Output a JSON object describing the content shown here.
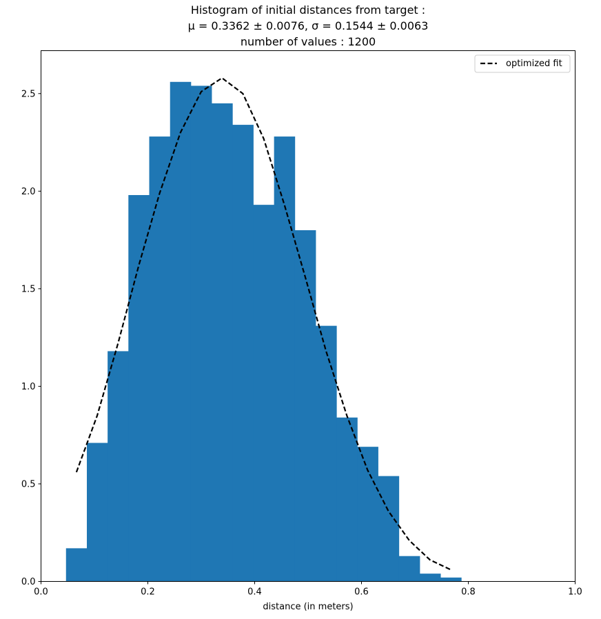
{
  "chart_data": {
    "type": "bar",
    "title_lines": [
      "Histogram of initial distances from target :",
      "μ = 0.3362 ± 0.0076, σ = 0.1544 ± 0.0063",
      "number of values :   1200"
    ],
    "xlabel": "distance (in meters)",
    "ylabel": "",
    "xlim": [
      0.0,
      1.0
    ],
    "ylim": [
      0.0,
      2.72
    ],
    "xticks": [
      "0.0",
      "0.2",
      "0.4",
      "0.6",
      "0.8",
      "1.0"
    ],
    "yticks": [
      "0.0",
      "0.5",
      "1.0",
      "1.5",
      "2.0",
      "2.5"
    ],
    "grid": false,
    "legend_position": "top-right",
    "bar_color": "#1f77b4",
    "fit_color": "#000000",
    "bins": {
      "edges": [
        0.0468,
        0.0858,
        0.1247,
        0.1636,
        0.2026,
        0.2416,
        0.2805,
        0.3194,
        0.3584,
        0.3974,
        0.4363,
        0.4752,
        0.5142,
        0.5532,
        0.5921,
        0.631,
        0.67,
        0.709,
        0.7479,
        0.7868
      ],
      "values": [
        0.17,
        0.71,
        1.18,
        1.98,
        2.28,
        2.56,
        2.54,
        2.45,
        2.34,
        1.93,
        2.28,
        1.8,
        1.31,
        0.84,
        0.69,
        0.54,
        0.13,
        0.04,
        0.02
      ]
    },
    "series": [
      {
        "name": "optimized fit",
        "x": [
          0.0663,
          0.1052,
          0.1442,
          0.1831,
          0.2221,
          0.261,
          0.2999,
          0.3389,
          0.3779,
          0.4168,
          0.4557,
          0.4947,
          0.5337,
          0.5726,
          0.6115,
          0.6505,
          0.6895,
          0.7284,
          0.7673
        ],
        "y": [
          0.56,
          0.85,
          1.22,
          1.62,
          1.99,
          2.3,
          2.51,
          2.58,
          2.5,
          2.27,
          1.93,
          1.56,
          1.18,
          0.85,
          0.57,
          0.36,
          0.21,
          0.11,
          0.06
        ]
      }
    ]
  }
}
